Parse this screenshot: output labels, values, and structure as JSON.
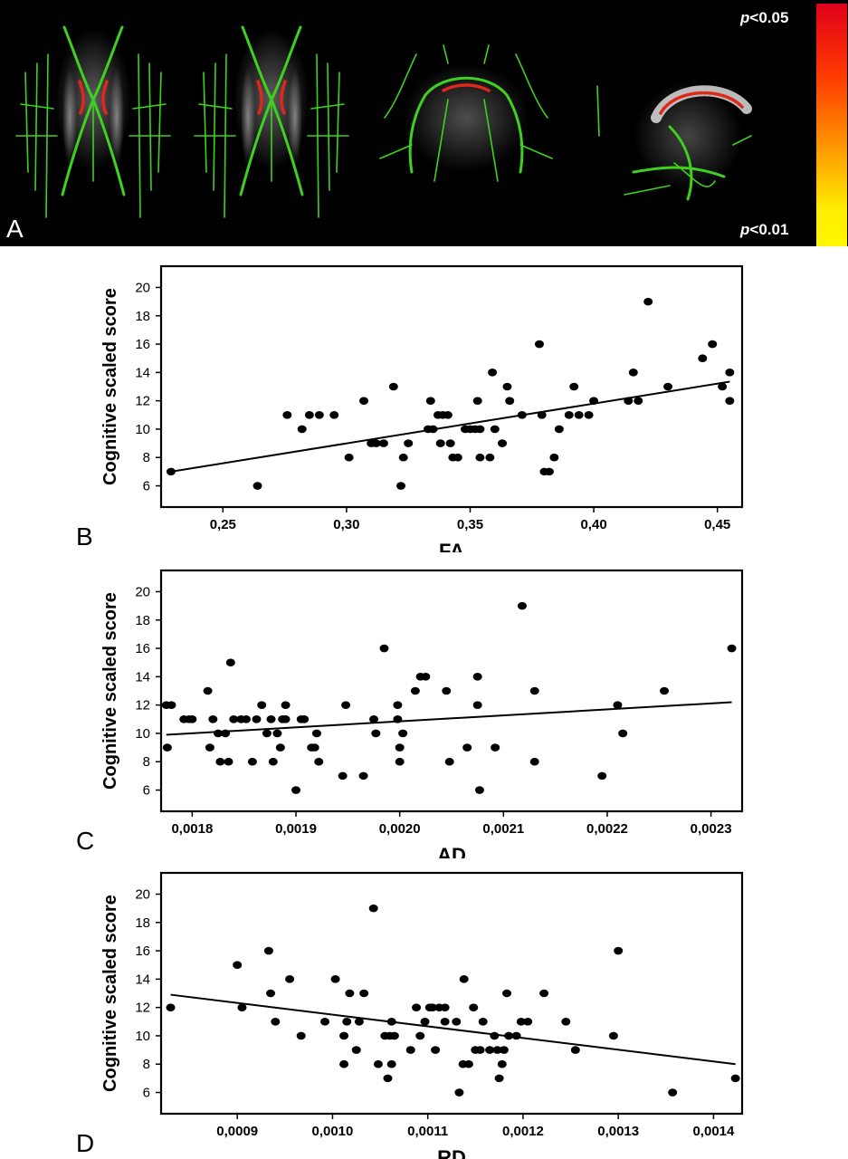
{
  "panel_a": {
    "letter": "A",
    "p_top_italic": "p",
    "p_top_rest": "<0.05",
    "p_bottom_italic": "p",
    "p_bottom_rest": "<0.01",
    "colors": {
      "tract": "#3fd11f",
      "significant": "#e0281a",
      "brain": "#bdbdbd",
      "background": "#000000"
    }
  },
  "chart_data": [
    {
      "panel": "B",
      "type": "scatter",
      "title": "",
      "xlabel": "FA",
      "ylabel": "Cognitive scaled score",
      "xlim": [
        0.225,
        0.46
      ],
      "ylim": [
        4.5,
        21.5
      ],
      "xticks": [
        0.25,
        0.3,
        0.35,
        0.4,
        0.45
      ],
      "xtick_labels": [
        "0,25",
        "0,30",
        "0,35",
        "0,40",
        "0,45"
      ],
      "yticks": [
        6,
        8,
        10,
        12,
        14,
        16,
        18,
        20
      ],
      "ytick_labels": [
        "6",
        "8",
        "10",
        "12",
        "14",
        "16",
        "18",
        "20"
      ],
      "points": [
        [
          0.229,
          7
        ],
        [
          0.264,
          6
        ],
        [
          0.276,
          11
        ],
        [
          0.282,
          10
        ],
        [
          0.285,
          11
        ],
        [
          0.289,
          11
        ],
        [
          0.295,
          11
        ],
        [
          0.301,
          8
        ],
        [
          0.307,
          12
        ],
        [
          0.31,
          9
        ],
        [
          0.312,
          9
        ],
        [
          0.315,
          9
        ],
        [
          0.319,
          13
        ],
        [
          0.322,
          6
        ],
        [
          0.323,
          8
        ],
        [
          0.325,
          9
        ],
        [
          0.333,
          10
        ],
        [
          0.334,
          12
        ],
        [
          0.335,
          10
        ],
        [
          0.337,
          11
        ],
        [
          0.338,
          9
        ],
        [
          0.339,
          11
        ],
        [
          0.341,
          11
        ],
        [
          0.342,
          9
        ],
        [
          0.343,
          8
        ],
        [
          0.345,
          8
        ],
        [
          0.348,
          10
        ],
        [
          0.35,
          10
        ],
        [
          0.352,
          10
        ],
        [
          0.353,
          12
        ],
        [
          0.354,
          8
        ],
        [
          0.354,
          10
        ],
        [
          0.358,
          8
        ],
        [
          0.359,
          14
        ],
        [
          0.36,
          10
        ],
        [
          0.363,
          9
        ],
        [
          0.365,
          13
        ],
        [
          0.366,
          12
        ],
        [
          0.371,
          11
        ],
        [
          0.378,
          16
        ],
        [
          0.379,
          11
        ],
        [
          0.38,
          7
        ],
        [
          0.382,
          7
        ],
        [
          0.384,
          8
        ],
        [
          0.386,
          10
        ],
        [
          0.39,
          11
        ],
        [
          0.392,
          13
        ],
        [
          0.394,
          11
        ],
        [
          0.398,
          11
        ],
        [
          0.4,
          12
        ],
        [
          0.414,
          12
        ],
        [
          0.416,
          14
        ],
        [
          0.418,
          12
        ],
        [
          0.422,
          19
        ],
        [
          0.43,
          13
        ],
        [
          0.444,
          15
        ],
        [
          0.448,
          16
        ],
        [
          0.452,
          13
        ],
        [
          0.455,
          14
        ],
        [
          0.455,
          12
        ]
      ],
      "fit_line": [
        [
          0.229,
          7.0
        ],
        [
          0.455,
          13.35
        ]
      ]
    },
    {
      "panel": "C",
      "type": "scatter",
      "title": "",
      "xlabel": "AD",
      "ylabel": "Cognitive scaled score",
      "xlim": [
        0.00177,
        0.00233
      ],
      "ylim": [
        4.5,
        21.5
      ],
      "xticks": [
        0.0018,
        0.0019,
        0.002,
        0.0021,
        0.0022,
        0.0023
      ],
      "xtick_labels": [
        "0,0018",
        "0,0019",
        "0,0020",
        "0,0021",
        "0,0022",
        "0,0023"
      ],
      "yticks": [
        6,
        8,
        10,
        12,
        14,
        16,
        18,
        20
      ],
      "ytick_labels": [
        "6",
        "8",
        "10",
        "12",
        "14",
        "16",
        "18",
        "20"
      ],
      "points": [
        [
          0.001775,
          12
        ],
        [
          0.001776,
          9
        ],
        [
          0.00178,
          12
        ],
        [
          0.001792,
          11
        ],
        [
          0.001797,
          11
        ],
        [
          0.0018,
          11
        ],
        [
          0.001815,
          13
        ],
        [
          0.001817,
          9
        ],
        [
          0.00182,
          11
        ],
        [
          0.001825,
          10
        ],
        [
          0.001827,
          8
        ],
        [
          0.001832,
          10
        ],
        [
          0.001835,
          8
        ],
        [
          0.001837,
          15
        ],
        [
          0.00184,
          11
        ],
        [
          0.001847,
          11
        ],
        [
          0.001852,
          11
        ],
        [
          0.001858,
          8
        ],
        [
          0.001862,
          11
        ],
        [
          0.001867,
          12
        ],
        [
          0.001872,
          10
        ],
        [
          0.001876,
          11
        ],
        [
          0.001878,
          8
        ],
        [
          0.001882,
          10
        ],
        [
          0.001885,
          9
        ],
        [
          0.001887,
          11
        ],
        [
          0.00189,
          12
        ],
        [
          0.00189,
          11
        ],
        [
          0.0019,
          6
        ],
        [
          0.001905,
          11
        ],
        [
          0.001908,
          11
        ],
        [
          0.001915,
          9
        ],
        [
          0.001918,
          9
        ],
        [
          0.00192,
          10
        ],
        [
          0.001922,
          8
        ],
        [
          0.001945,
          7
        ],
        [
          0.001948,
          12
        ],
        [
          0.001965,
          7
        ],
        [
          0.001975,
          11
        ],
        [
          0.001977,
          10
        ],
        [
          0.001985,
          16
        ],
        [
          0.001998,
          12
        ],
        [
          0.001998,
          11
        ],
        [
          0.002,
          8
        ],
        [
          0.002,
          9
        ],
        [
          0.002003,
          10
        ],
        [
          0.002015,
          13
        ],
        [
          0.00202,
          14
        ],
        [
          0.002025,
          14
        ],
        [
          0.002045,
          13
        ],
        [
          0.002048,
          8
        ],
        [
          0.002065,
          9
        ],
        [
          0.002075,
          12
        ],
        [
          0.002075,
          14
        ],
        [
          0.002077,
          6
        ],
        [
          0.002092,
          9
        ],
        [
          0.002118,
          19
        ],
        [
          0.00213,
          13
        ],
        [
          0.00213,
          8
        ],
        [
          0.002195,
          7
        ],
        [
          0.00221,
          12
        ],
        [
          0.002215,
          10
        ],
        [
          0.002255,
          13
        ],
        [
          0.00232,
          16
        ]
      ],
      "fit_line": [
        [
          0.001775,
          9.9
        ],
        [
          0.00232,
          12.2
        ]
      ]
    },
    {
      "panel": "D",
      "type": "scatter",
      "title": "",
      "xlabel": "RD",
      "ylabel": "Cognitive scaled score",
      "xlim": [
        0.00082,
        0.00143
      ],
      "ylim": [
        4.5,
        21.5
      ],
      "xticks": [
        0.0009,
        0.001,
        0.0011,
        0.0012,
        0.0013,
        0.0014
      ],
      "xtick_labels": [
        "0,0009",
        "0,0010",
        "0,0011",
        "0,0012",
        "0,0013",
        "0,0014"
      ],
      "yticks": [
        6,
        8,
        10,
        12,
        14,
        16,
        18,
        20
      ],
      "ytick_labels": [
        "6",
        "8",
        "10",
        "12",
        "14",
        "16",
        "18",
        "20"
      ],
      "points": [
        [
          0.00083,
          12
        ],
        [
          0.0009,
          15
        ],
        [
          0.000905,
          12
        ],
        [
          0.000933,
          16
        ],
        [
          0.000935,
          13
        ],
        [
          0.00094,
          11
        ],
        [
          0.000955,
          14
        ],
        [
          0.000967,
          10
        ],
        [
          0.000992,
          11
        ],
        [
          0.001003,
          14
        ],
        [
          0.001012,
          10
        ],
        [
          0.001012,
          8
        ],
        [
          0.001015,
          11
        ],
        [
          0.001018,
          13
        ],
        [
          0.001025,
          9
        ],
        [
          0.001028,
          11
        ],
        [
          0.001033,
          13
        ],
        [
          0.001043,
          19
        ],
        [
          0.001048,
          8
        ],
        [
          0.001055,
          10
        ],
        [
          0.001058,
          7
        ],
        [
          0.00106,
          10
        ],
        [
          0.001062,
          11
        ],
        [
          0.001062,
          8
        ],
        [
          0.001065,
          10
        ],
        [
          0.001082,
          9
        ],
        [
          0.001088,
          12
        ],
        [
          0.001092,
          10
        ],
        [
          0.001097,
          11
        ],
        [
          0.001102,
          12
        ],
        [
          0.001105,
          12
        ],
        [
          0.001108,
          9
        ],
        [
          0.001112,
          12
        ],
        [
          0.001118,
          11
        ],
        [
          0.001118,
          12
        ],
        [
          0.00113,
          11
        ],
        [
          0.001133,
          6
        ],
        [
          0.001137,
          8
        ],
        [
          0.001138,
          14
        ],
        [
          0.001143,
          8
        ],
        [
          0.001148,
          12
        ],
        [
          0.00115,
          9
        ],
        [
          0.001155,
          9
        ],
        [
          0.001158,
          11
        ],
        [
          0.001165,
          9
        ],
        [
          0.00117,
          10
        ],
        [
          0.001173,
          9
        ],
        [
          0.001175,
          7
        ],
        [
          0.001178,
          8
        ],
        [
          0.00118,
          9
        ],
        [
          0.001183,
          13
        ],
        [
          0.001185,
          10
        ],
        [
          0.001193,
          10
        ],
        [
          0.001198,
          11
        ],
        [
          0.001205,
          11
        ],
        [
          0.001222,
          13
        ],
        [
          0.001245,
          11
        ],
        [
          0.001255,
          9
        ],
        [
          0.001295,
          10
        ],
        [
          0.0013,
          16
        ],
        [
          0.001357,
          6
        ],
        [
          0.001423,
          7
        ]
      ],
      "fit_line": [
        [
          0.00083,
          12.9
        ],
        [
          0.001423,
          8.0
        ]
      ]
    }
  ]
}
